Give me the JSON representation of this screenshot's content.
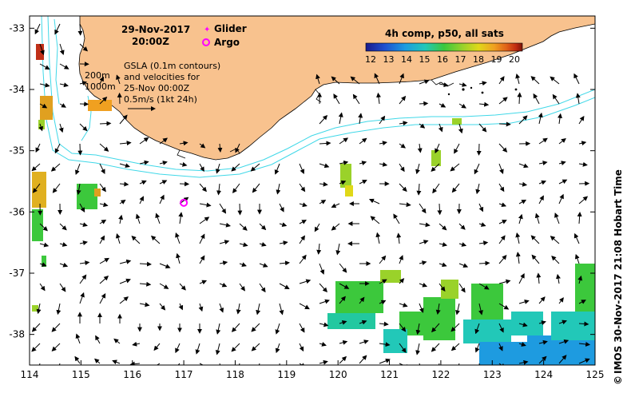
{
  "header": {
    "date": "29-Nov-2017",
    "time": "20:00Z"
  },
  "legend": {
    "glider_label": "Glider",
    "argo_label": "Argo",
    "glider_color": "#ff00ff",
    "argo_color": "#ff00ff"
  },
  "gsla_note": {
    "line1": "GSLA (0.1m contours)",
    "line2": "and velocities for",
    "line3": "25-Nov 00:00Z",
    "line4": "0.5m/s (1kt 24h)"
  },
  "depth_labels": {
    "d200": "200m",
    "d1000": "1000m"
  },
  "colorbar": {
    "title": "4h comp, p50, all sats",
    "ticks": [
      "12",
      "13",
      "14",
      "15",
      "16",
      "17",
      "18",
      "19",
      "20"
    ],
    "colors": [
      "#1a1a8c",
      "#1f4fd0",
      "#1e9be0",
      "#22c8b8",
      "#3cc83c",
      "#9ad22a",
      "#e0d818",
      "#f0a020",
      "#e06018",
      "#c02a10",
      "#7a1408"
    ]
  },
  "axes": {
    "x_ticks": [
      "114",
      "115",
      "116",
      "117",
      "118",
      "119",
      "120",
      "121",
      "122",
      "123",
      "124",
      "125"
    ],
    "y_ticks": [
      "-33",
      "-34",
      "-35",
      "-36",
      "-37",
      "-38"
    ]
  },
  "credit": "IMOS 30-Nov-2017 21:08 Hobart Time",
  "colors": {
    "land": "#f8c28e",
    "contour": "#40d8e8",
    "arrow": "#000000"
  },
  "argo_float": {
    "lon": 117.0,
    "lat": -35.85
  }
}
